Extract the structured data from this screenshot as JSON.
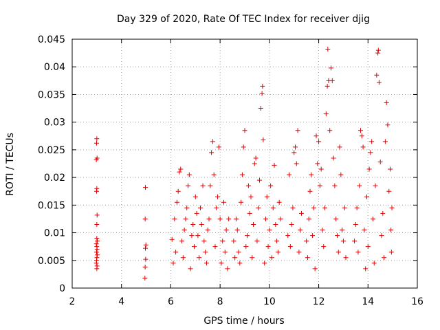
{
  "chart_data": {
    "type": "scatter",
    "title": "Day 329 of 2020, Rate Of TEC Index for receiver djig",
    "xlabel": "GPS time / hours",
    "ylabel": "ROTI / TECUs",
    "xlim": [
      2,
      16
    ],
    "ylim": [
      0,
      0.045
    ],
    "xticks": [
      2,
      4,
      6,
      8,
      10,
      12,
      14,
      16
    ],
    "xtick_labels": [
      "2",
      "4",
      "6",
      "8",
      "10",
      "12",
      "14",
      "16"
    ],
    "yticks": [
      0,
      0.005,
      0.01,
      0.015,
      0.02,
      0.025,
      0.03,
      0.035,
      0.04,
      0.045
    ],
    "ytick_labels": [
      "0",
      "0.005",
      "0.01",
      "0.015",
      "0.02",
      "0.025",
      "0.03",
      "0.035",
      "0.04",
      "0.045"
    ],
    "grid": true,
    "marker": "plus",
    "color": "#e00000",
    "series": [
      {
        "points": [
          [
            2.98,
            0.0045
          ],
          [
            3.0,
            0.0055
          ],
          [
            3.02,
            0.006
          ],
          [
            2.99,
            0.0065
          ],
          [
            3.01,
            0.007
          ],
          [
            3.0,
            0.0075
          ],
          [
            2.98,
            0.008
          ],
          [
            3.02,
            0.0085
          ],
          [
            3.0,
            0.0035
          ],
          [
            3.01,
            0.004
          ],
          [
            2.99,
            0.005
          ],
          [
            3.0,
            0.009
          ],
          [
            3.0,
            0.0115
          ],
          [
            3.01,
            0.0132
          ],
          [
            2.99,
            0.0175
          ],
          [
            3.0,
            0.018
          ],
          [
            2.98,
            0.0232
          ],
          [
            3.01,
            0.0235
          ],
          [
            2.99,
            0.0262
          ],
          [
            3.0,
            0.027
          ],
          [
            4.95,
            0.0018
          ],
          [
            4.96,
            0.0038
          ],
          [
            4.98,
            0.0052
          ],
          [
            4.97,
            0.0072
          ],
          [
            4.99,
            0.0078
          ],
          [
            4.96,
            0.0125
          ],
          [
            4.97,
            0.0182
          ],
          [
            6.05,
            0.0088
          ],
          [
            6.1,
            0.0045
          ],
          [
            6.15,
            0.0125
          ],
          [
            6.2,
            0.0065
          ],
          [
            6.25,
            0.0155
          ],
          [
            6.3,
            0.0175
          ],
          [
            6.35,
            0.021
          ],
          [
            6.4,
            0.0215
          ],
          [
            6.45,
            0.0085
          ],
          [
            6.5,
            0.0055
          ],
          [
            6.55,
            0.0105
          ],
          [
            6.6,
            0.0125
          ],
          [
            6.65,
            0.0145
          ],
          [
            6.7,
            0.0185
          ],
          [
            6.75,
            0.0205
          ],
          [
            6.8,
            0.0035
          ],
          [
            6.85,
            0.0095
          ],
          [
            6.9,
            0.0115
          ],
          [
            6.95,
            0.0075
          ],
          [
            7.0,
            0.0165
          ],
          [
            7.05,
            0.0135
          ],
          [
            7.1,
            0.0095
          ],
          [
            7.15,
            0.0055
          ],
          [
            7.2,
            0.0145
          ],
          [
            7.25,
            0.0115
          ],
          [
            7.3,
            0.0185
          ],
          [
            7.35,
            0.0085
          ],
          [
            7.4,
            0.0065
          ],
          [
            7.45,
            0.0045
          ],
          [
            7.5,
            0.0105
          ],
          [
            7.55,
            0.0125
          ],
          [
            7.6,
            0.0185
          ],
          [
            7.65,
            0.0245
          ],
          [
            7.7,
            0.0265
          ],
          [
            7.75,
            0.0205
          ],
          [
            7.8,
            0.0075
          ],
          [
            7.85,
            0.0145
          ],
          [
            7.9,
            0.0165
          ],
          [
            7.95,
            0.0255
          ],
          [
            8.0,
            0.0125
          ],
          [
            8.05,
            0.0045
          ],
          [
            8.1,
            0.0085
          ],
          [
            8.15,
            0.0155
          ],
          [
            8.2,
            0.0065
          ],
          [
            8.25,
            0.0105
          ],
          [
            8.3,
            0.0035
          ],
          [
            8.35,
            0.0125
          ],
          [
            8.55,
            0.0085
          ],
          [
            8.6,
            0.0055
          ],
          [
            8.65,
            0.0125
          ],
          [
            8.7,
            0.0105
          ],
          [
            8.75,
            0.0065
          ],
          [
            8.8,
            0.0045
          ],
          [
            8.85,
            0.0155
          ],
          [
            8.9,
            0.0205
          ],
          [
            8.95,
            0.0255
          ],
          [
            9.0,
            0.0285
          ],
          [
            9.05,
            0.0075
          ],
          [
            9.1,
            0.0095
          ],
          [
            9.15,
            0.0185
          ],
          [
            9.2,
            0.0135
          ],
          [
            9.25,
            0.0165
          ],
          [
            9.3,
            0.0055
          ],
          [
            9.35,
            0.0115
          ],
          [
            9.4,
            0.0225
          ],
          [
            9.45,
            0.0235
          ],
          [
            9.5,
            0.0085
          ],
          [
            9.55,
            0.0145
          ],
          [
            9.6,
            0.0195
          ],
          [
            9.65,
            0.0325
          ],
          [
            9.7,
            0.0352
          ],
          [
            9.72,
            0.0365
          ],
          [
            9.75,
            0.0268
          ],
          [
            9.8,
            0.0045
          ],
          [
            9.85,
            0.0125
          ],
          [
            9.9,
            0.0165
          ],
          [
            9.95,
            0.0075
          ],
          [
            10.0,
            0.0105
          ],
          [
            10.05,
            0.0185
          ],
          [
            10.1,
            0.0055
          ],
          [
            10.15,
            0.0145
          ],
          [
            10.2,
            0.0222
          ],
          [
            10.25,
            0.0115
          ],
          [
            10.3,
            0.0085
          ],
          [
            10.35,
            0.0065
          ],
          [
            10.4,
            0.0155
          ],
          [
            10.45,
            0.0125
          ],
          [
            10.75,
            0.0095
          ],
          [
            10.8,
            0.0205
          ],
          [
            10.85,
            0.0075
          ],
          [
            10.9,
            0.0115
          ],
          [
            10.95,
            0.0145
          ],
          [
            11.0,
            0.0245
          ],
          [
            11.05,
            0.0255
          ],
          [
            11.1,
            0.0225
          ],
          [
            11.15,
            0.0285
          ],
          [
            11.2,
            0.0065
          ],
          [
            11.25,
            0.0105
          ],
          [
            11.3,
            0.0135
          ],
          [
            11.5,
            0.0085
          ],
          [
            11.55,
            0.0055
          ],
          [
            11.6,
            0.0125
          ],
          [
            11.65,
            0.0175
          ],
          [
            11.7,
            0.0205
          ],
          [
            11.75,
            0.0095
          ],
          [
            11.8,
            0.0145
          ],
          [
            11.85,
            0.0035
          ],
          [
            11.9,
            0.0275
          ],
          [
            11.95,
            0.0225
          ],
          [
            12.0,
            0.0265
          ],
          [
            12.05,
            0.0185
          ],
          [
            12.1,
            0.0215
          ],
          [
            12.15,
            0.0105
          ],
          [
            12.2,
            0.0075
          ],
          [
            12.25,
            0.0145
          ],
          [
            12.3,
            0.0315
          ],
          [
            12.35,
            0.0365
          ],
          [
            12.37,
            0.0432
          ],
          [
            12.4,
            0.0375
          ],
          [
            12.45,
            0.0285
          ],
          [
            12.5,
            0.0398
          ],
          [
            12.55,
            0.0375
          ],
          [
            12.6,
            0.0235
          ],
          [
            12.65,
            0.0185
          ],
          [
            12.7,
            0.0125
          ],
          [
            12.75,
            0.0095
          ],
          [
            12.8,
            0.0065
          ],
          [
            12.85,
            0.0255
          ],
          [
            12.9,
            0.0205
          ],
          [
            12.95,
            0.0105
          ],
          [
            13.0,
            0.0085
          ],
          [
            13.05,
            0.0145
          ],
          [
            13.1,
            0.0055
          ],
          [
            13.45,
            0.0085
          ],
          [
            13.5,
            0.0115
          ],
          [
            13.55,
            0.0145
          ],
          [
            13.6,
            0.0065
          ],
          [
            13.65,
            0.0185
          ],
          [
            13.7,
            0.0285
          ],
          [
            13.75,
            0.0275
          ],
          [
            13.8,
            0.0255
          ],
          [
            13.85,
            0.0105
          ],
          [
            13.9,
            0.0035
          ],
          [
            13.95,
            0.0165
          ],
          [
            14.0,
            0.0075
          ],
          [
            14.05,
            0.0215
          ],
          [
            14.1,
            0.0245
          ],
          [
            14.15,
            0.0265
          ],
          [
            14.2,
            0.0125
          ],
          [
            14.25,
            0.0045
          ],
          [
            14.3,
            0.0185
          ],
          [
            14.35,
            0.0385
          ],
          [
            14.4,
            0.0425
          ],
          [
            14.42,
            0.043
          ],
          [
            14.45,
            0.0372
          ],
          [
            14.5,
            0.0228
          ],
          [
            14.55,
            0.0095
          ],
          [
            14.6,
            0.0135
          ],
          [
            14.65,
            0.0055
          ],
          [
            14.7,
            0.0265
          ],
          [
            14.75,
            0.0335
          ],
          [
            14.8,
            0.0295
          ],
          [
            14.85,
            0.0175
          ],
          [
            14.9,
            0.0215
          ],
          [
            14.93,
            0.0105
          ],
          [
            14.95,
            0.0065
          ],
          [
            14.97,
            0.0145
          ]
        ]
      }
    ]
  }
}
